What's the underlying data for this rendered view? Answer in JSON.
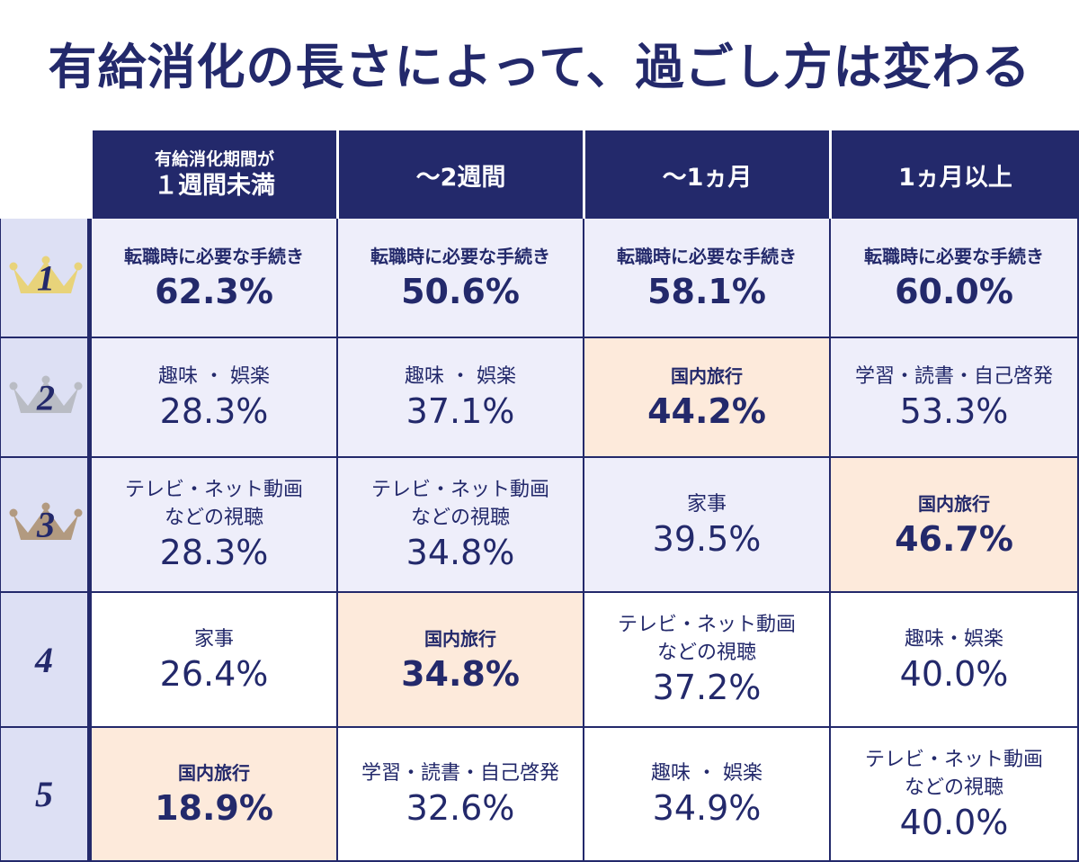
{
  "title": "有給消化の長さによって、過ごし方は変わる",
  "chart_data": {
    "type": "table",
    "columns": [
      "有給消化期間が\n１週間未満",
      "～2週間",
      "～1ヵ月",
      "1ヵ月以上"
    ],
    "column_header_lines": [
      [
        "有給消化期間が",
        "１週間未満"
      ],
      [
        "～2週間"
      ],
      [
        "～1ヵ月"
      ],
      [
        "1ヵ月以上"
      ]
    ],
    "ranks": [
      "1",
      "2",
      "3",
      "4",
      "5"
    ],
    "rows": [
      [
        {
          "activity": "転職時に必要な手続き",
          "value": "62.3%",
          "emphasis": true,
          "highlight": false
        },
        {
          "activity": "転職時に必要な手続き",
          "value": "50.6%",
          "emphasis": true,
          "highlight": false
        },
        {
          "activity": "転職時に必要な手続き",
          "value": "58.1%",
          "emphasis": true,
          "highlight": false
        },
        {
          "activity": "転職時に必要な手続き",
          "value": "60.0%",
          "emphasis": true,
          "highlight": false
        }
      ],
      [
        {
          "activity": "趣味 ・ 娯楽",
          "value": "28.3%",
          "emphasis": false,
          "highlight": false
        },
        {
          "activity": "趣味 ・ 娯楽",
          "value": "37.1%",
          "emphasis": false,
          "highlight": false
        },
        {
          "activity": "国内旅行",
          "value": "44.2%",
          "emphasis": true,
          "highlight": true
        },
        {
          "activity": "学習・読書・自己啓発",
          "value": "53.3%",
          "emphasis": false,
          "highlight": false
        }
      ],
      [
        {
          "activity": "テレビ・ネット動画\nなどの視聴",
          "value": "28.3%",
          "emphasis": false,
          "highlight": false
        },
        {
          "activity": "テレビ・ネット動画\nなどの視聴",
          "value": "34.8%",
          "emphasis": false,
          "highlight": false
        },
        {
          "activity": "家事",
          "value": "39.5%",
          "emphasis": false,
          "highlight": false
        },
        {
          "activity": "国内旅行",
          "value": "46.7%",
          "emphasis": true,
          "highlight": true
        }
      ],
      [
        {
          "activity": "家事",
          "value": "26.4%",
          "emphasis": false,
          "highlight": false
        },
        {
          "activity": "国内旅行",
          "value": "34.8%",
          "emphasis": true,
          "highlight": true
        },
        {
          "activity": "テレビ・ネット動画\nなどの視聴",
          "value": "37.2%",
          "emphasis": false,
          "highlight": false
        },
        {
          "activity": "趣味・娯楽",
          "value": "40.0%",
          "emphasis": false,
          "highlight": false
        }
      ],
      [
        {
          "activity": "国内旅行",
          "value": "18.9%",
          "emphasis": true,
          "highlight": true
        },
        {
          "activity": "学習・読書・自己啓発",
          "value": "32.6%",
          "emphasis": false,
          "highlight": false
        },
        {
          "activity": "趣味 ・ 娯楽",
          "value": "34.9%",
          "emphasis": false,
          "highlight": false
        },
        {
          "activity": "テレビ・ネット動画\nなどの視聴",
          "value": "40.0%",
          "emphasis": false,
          "highlight": false
        }
      ]
    ],
    "colors": {
      "header_bg": "#23296b",
      "text": "#23296b",
      "row_shade": "#eeeefa",
      "highlight": "#fdeadb",
      "rank_bg": "#dde0f4",
      "crown_gold": "#e8d37a",
      "crown_silver": "#b9bcc4",
      "crown_bronze": "#b29a80"
    },
    "crowns": [
      "gold-crown-icon",
      "silver-crown-icon",
      "bronze-crown-icon"
    ]
  }
}
